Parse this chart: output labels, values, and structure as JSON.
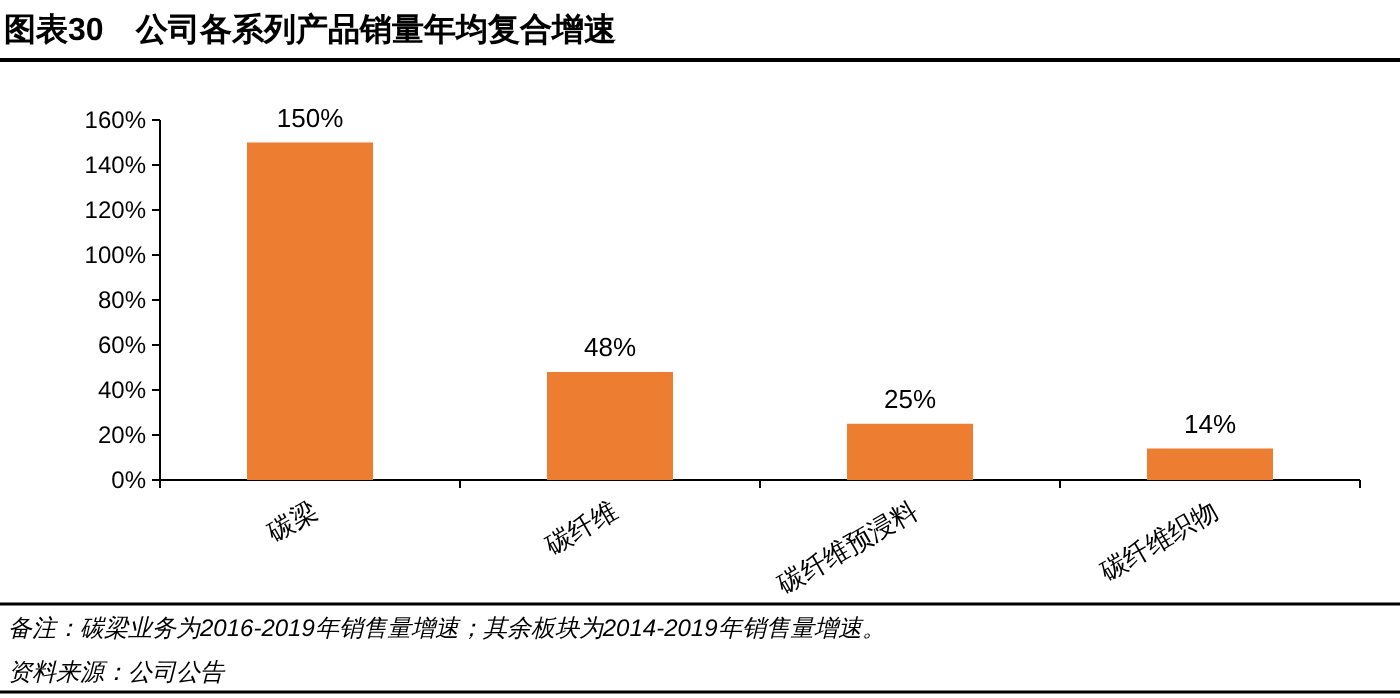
{
  "chart_data": {
    "type": "bar",
    "title": "图表30　公司各系列产品销量年均复合增速",
    "categories": [
      "碳梁",
      "碳纤维",
      "碳纤维预浸料",
      "碳纤维织物"
    ],
    "values": [
      150,
      48,
      25,
      14
    ],
    "color": "#ed7d31",
    "value_labels": [
      "150%",
      "48%",
      "25%",
      "14%"
    ],
    "ylim": [
      0,
      160
    ],
    "yticks": [
      {
        "value": 0,
        "label": "0%"
      },
      {
        "value": 20,
        "label": "20%"
      },
      {
        "value": 40,
        "label": "40%"
      },
      {
        "value": 60,
        "label": "60%"
      },
      {
        "value": 80,
        "label": "80%"
      },
      {
        "value": 100,
        "label": "100%"
      },
      {
        "value": 120,
        "label": "120%"
      },
      {
        "value": 140,
        "label": "140%"
      },
      {
        "value": 160,
        "label": "160%"
      }
    ],
    "grid": false,
    "annotations": [
      "备注：碳梁业务为2016-2019年销售量增速；其余板块为2014-2019年销售量增速。",
      "资料来源：公司公告"
    ]
  }
}
